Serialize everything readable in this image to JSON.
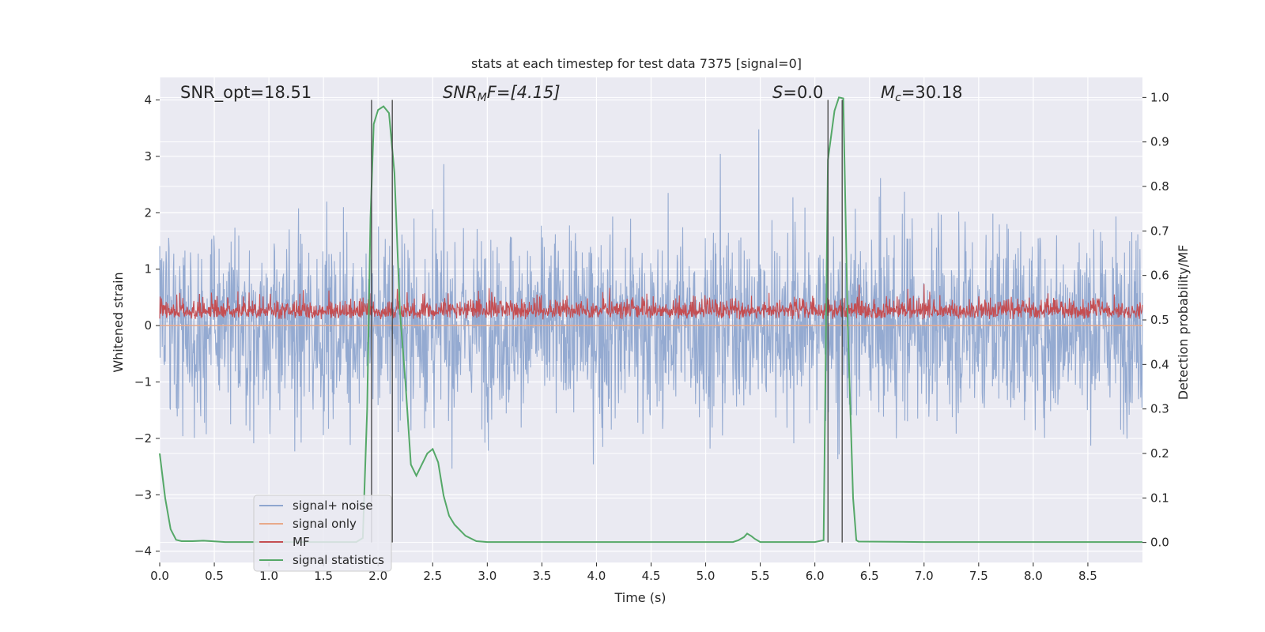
{
  "chart_data": {
    "type": "line",
    "title": "stats at each timestep for test data 7375 [signal=0]",
    "xlabel": "Time (s)",
    "ylabel_left": "Whitened strain",
    "ylabel_right": "Detection probability/MF",
    "xlim": [
      0.0,
      9.0
    ],
    "ylim_left": [
      -4.2,
      4.4
    ],
    "ylim_right": [
      -0.045,
      1.045
    ],
    "x_ticks": [
      "0.0",
      "0.5",
      "1.0",
      "1.5",
      "2.0",
      "2.5",
      "3.0",
      "3.5",
      "4.0",
      "4.5",
      "5.0",
      "5.5",
      "6.0",
      "6.5",
      "7.0",
      "7.5",
      "8.0",
      "8.5"
    ],
    "y_ticks_left": [
      "4",
      "3",
      "2",
      "1",
      "0",
      "−1",
      "−2",
      "−3",
      "−4"
    ],
    "y_ticks_right": [
      "1.0",
      "0.9",
      "0.8",
      "0.7",
      "0.6",
      "0.5",
      "0.4",
      "0.3",
      "0.2",
      "0.1",
      "0.0"
    ],
    "grid": true,
    "legend_placement": "lower-left",
    "annotations": {
      "snr_opt": "SNR_opt=18.51",
      "snr_mf_main": "SNR",
      "snr_mf_sub": "M",
      "snr_mf_rest": "F=[4.15]",
      "s_main": "S",
      "s_rest": "=0.0",
      "mc_main": "M",
      "mc_sub": "c",
      "mc_rest": "=30.18"
    },
    "vertical_lines": [
      1.94,
      2.13,
      6.12,
      6.25
    ],
    "series": [
      {
        "name": "signal+ noise",
        "color": "#8fa6cf",
        "axis": "left",
        "description": "whitened strain noise, roughly ±3.5 envelope"
      },
      {
        "name": "signal only",
        "color": "#e8a98a",
        "axis": "left",
        "values_constant": 0.0
      },
      {
        "name": "MF",
        "color": "#c44e52",
        "axis": "right",
        "description": "matched filter output fluctuating 0.5–0.6"
      },
      {
        "name": "signal statistics",
        "color": "#55a868",
        "axis": "right",
        "x": [
          0.0,
          0.05,
          0.1,
          0.15,
          0.2,
          0.3,
          0.4,
          0.6,
          0.8,
          1.0,
          1.2,
          1.4,
          1.6,
          1.8,
          1.86,
          1.9,
          1.93,
          1.96,
          2.0,
          2.05,
          2.1,
          2.15,
          2.2,
          2.25,
          2.3,
          2.35,
          2.4,
          2.45,
          2.5,
          2.55,
          2.6,
          2.65,
          2.7,
          2.8,
          2.9,
          3.0,
          3.5,
          4.0,
          4.5,
          5.0,
          5.25,
          5.3,
          5.35,
          5.38,
          5.42,
          5.45,
          5.5,
          5.6,
          6.0,
          6.08,
          6.12,
          6.18,
          6.22,
          6.26,
          6.3,
          6.35,
          6.38,
          6.4,
          7.0,
          8.0,
          8.5,
          9.0
        ],
        "values": [
          0.2,
          0.1,
          0.03,
          0.006,
          0.003,
          0.003,
          0.004,
          0.001,
          0.001,
          0.001,
          0.001,
          0.001,
          0.001,
          0.001,
          0.01,
          0.3,
          0.73,
          0.94,
          0.972,
          0.98,
          0.965,
          0.83,
          0.52,
          0.36,
          0.175,
          0.15,
          0.175,
          0.2,
          0.21,
          0.18,
          0.105,
          0.06,
          0.04,
          0.015,
          0.003,
          0.001,
          0.001,
          0.001,
          0.001,
          0.001,
          0.001,
          0.005,
          0.012,
          0.02,
          0.014,
          0.008,
          0.001,
          0.001,
          0.001,
          0.005,
          0.86,
          0.97,
          1.0,
          0.998,
          0.5,
          0.1,
          0.005,
          0.002,
          0.001,
          0.001,
          0.001,
          0.001
        ]
      }
    ]
  }
}
